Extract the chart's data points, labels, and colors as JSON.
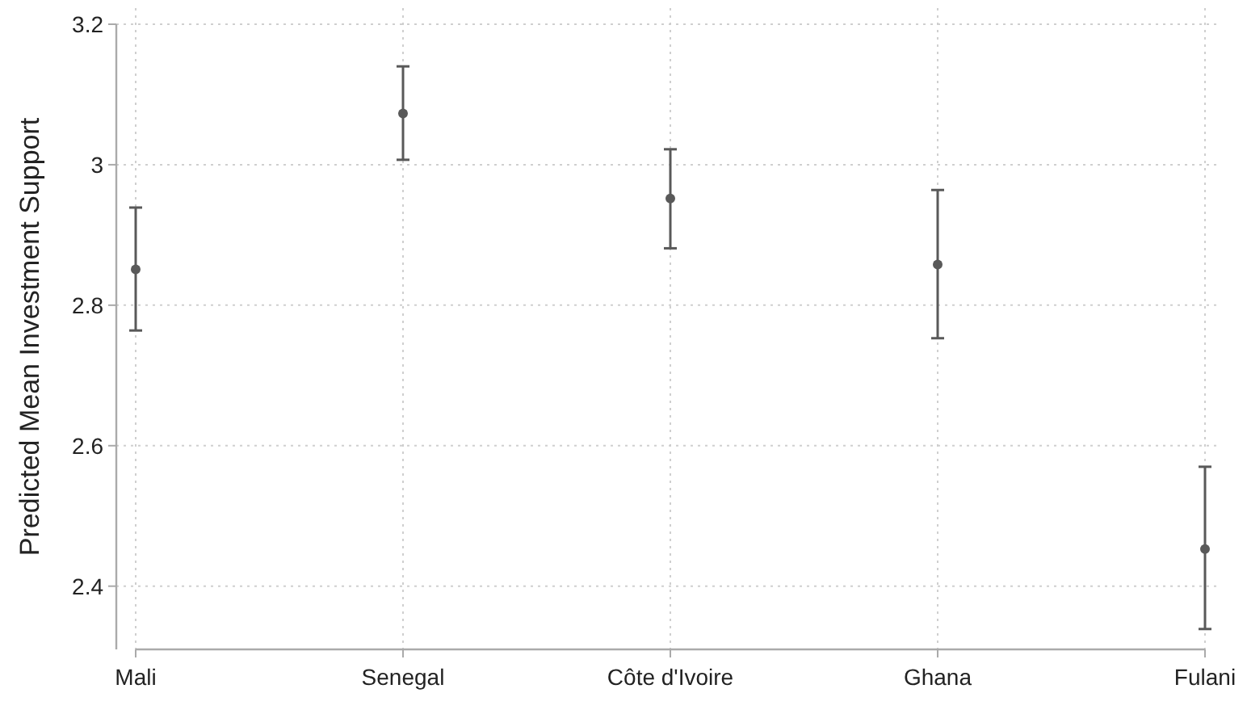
{
  "chart_data": {
    "type": "scatter",
    "ylabel": "Predicted Mean Investment Support",
    "categories": [
      "Mali",
      "Senegal",
      "Côte d'Ivoire",
      "Ghana",
      "Fulani"
    ],
    "values": [
      2.851,
      3.073,
      2.952,
      2.858,
      2.453
    ],
    "errors": [
      [
        2.764,
        2.939
      ],
      [
        3.007,
        3.14
      ],
      [
        2.881,
        3.022
      ],
      [
        2.753,
        2.964
      ],
      [
        2.339,
        2.57
      ]
    ],
    "color": "#595959",
    "marker": "circle",
    "ylim": [
      2.31,
      3.2
    ],
    "yticks": [
      2.4,
      2.6,
      2.8,
      3,
      3.2
    ],
    "grid": true
  }
}
